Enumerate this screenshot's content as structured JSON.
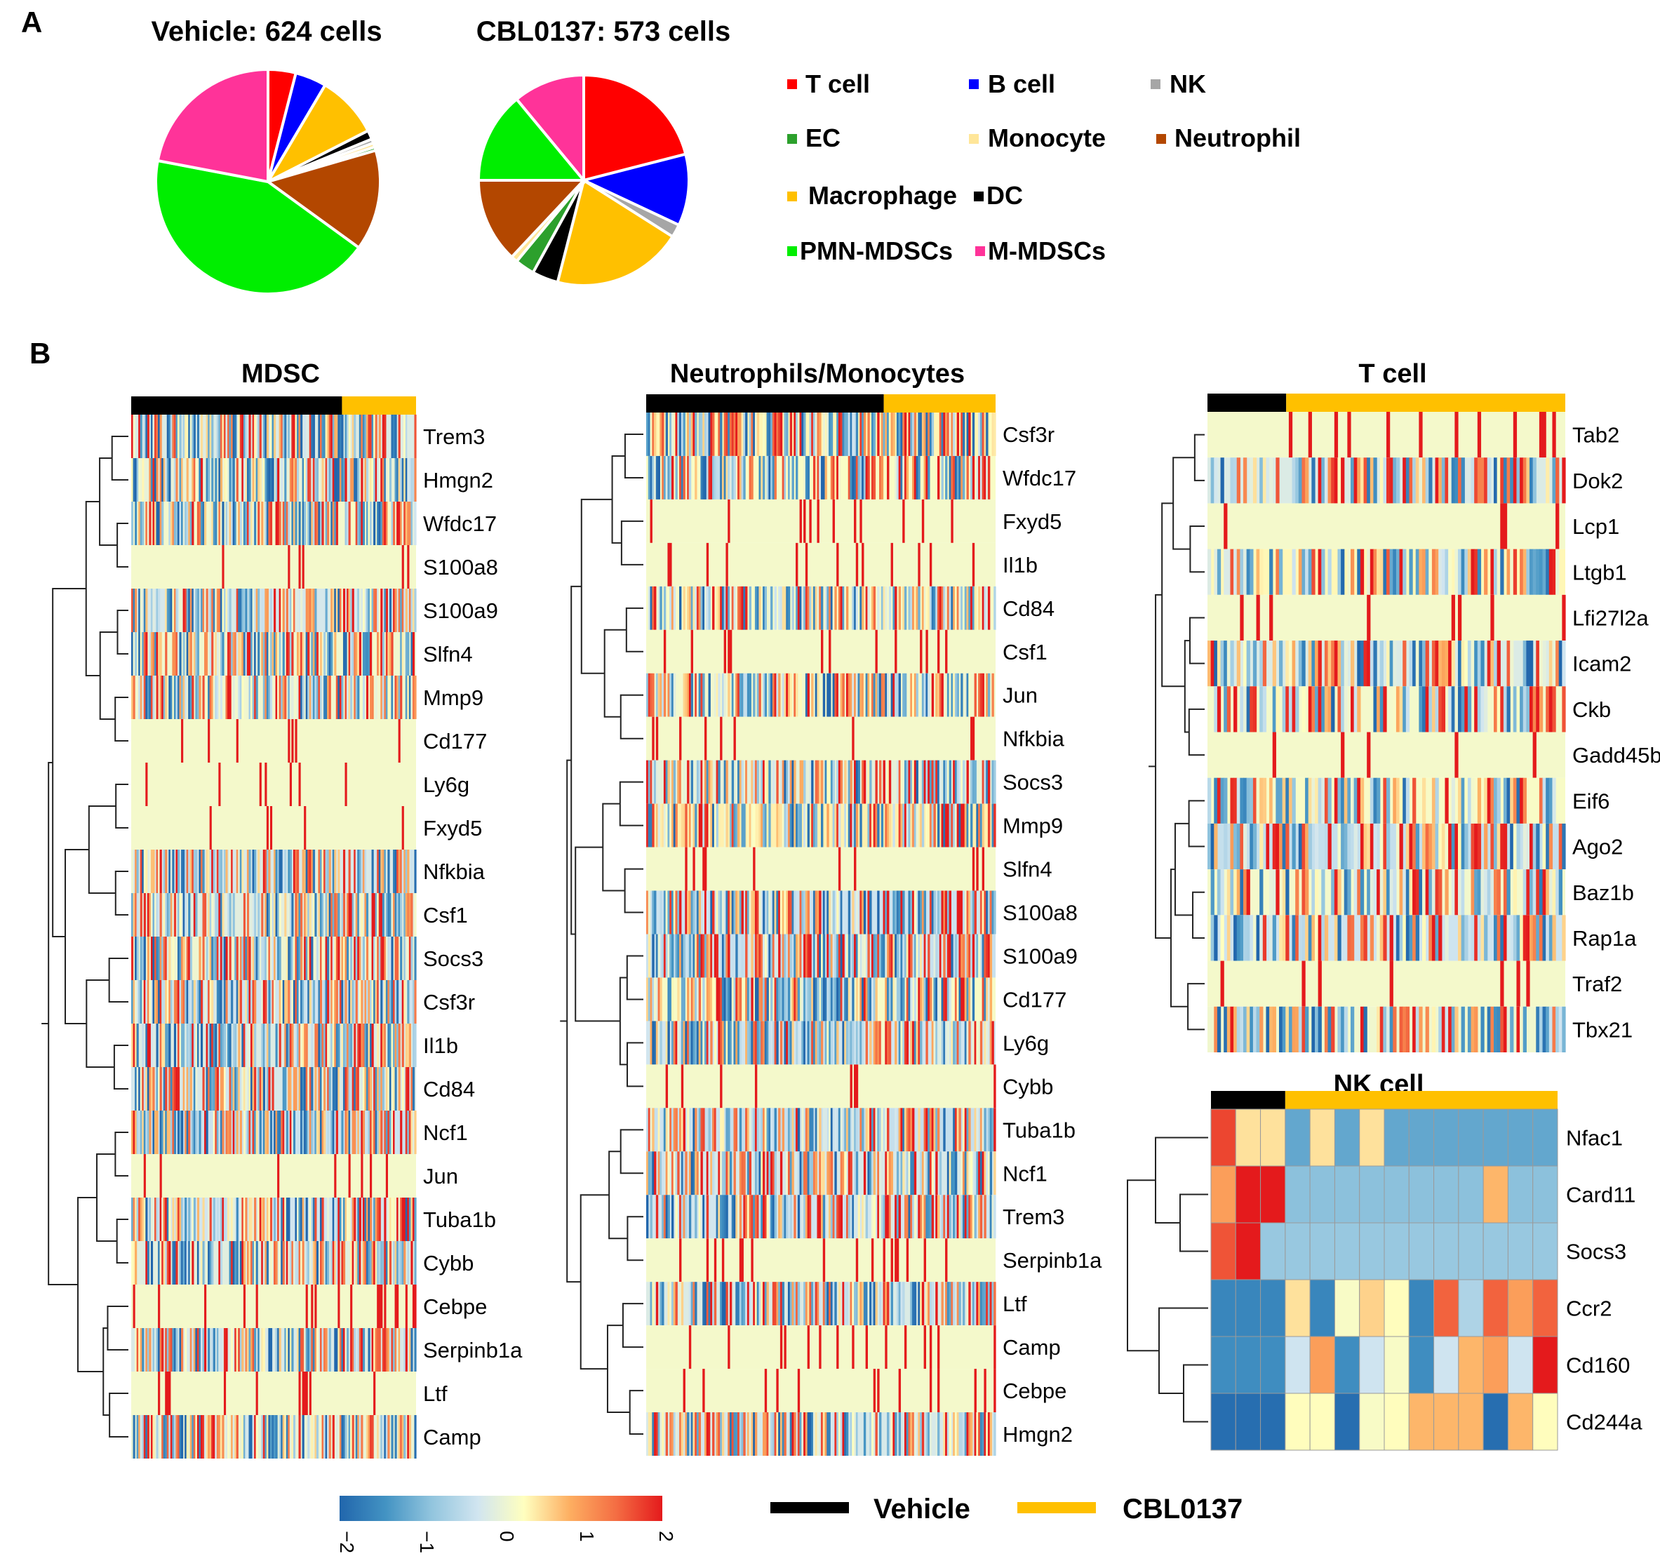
{
  "panels": {
    "a": "A",
    "b": "B"
  },
  "colors": {
    "vehicle": "#000000",
    "cbl": "#ffc000",
    "dendro": "#222222"
  },
  "chart_data": [
    {
      "type": "pie",
      "id": "vehicle",
      "title": "Vehicle: 624 cells",
      "slices": [
        {
          "label": "T cell",
          "value": 4.0
        },
        {
          "label": "B cell",
          "value": 4.5
        },
        {
          "label": "Macrophage",
          "value": 9.0
        },
        {
          "label": "DC",
          "value": 1.3
        },
        {
          "label": "NK",
          "value": 0.6
        },
        {
          "label": "Monocyte",
          "value": 0.6
        },
        {
          "label": "EC",
          "value": 0.5
        },
        {
          "label": "Neutrophil",
          "value": 14.5
        },
        {
          "label": "PMN-MDSCs",
          "value": 43.0
        },
        {
          "label": "M-MDSCs",
          "value": 22.0
        }
      ]
    },
    {
      "type": "pie",
      "id": "cbl0137",
      "title": "CBL0137: 573 cells",
      "slices": [
        {
          "label": "T cell",
          "value": 21.0
        },
        {
          "label": "B cell",
          "value": 11.0
        },
        {
          "label": "NK",
          "value": 2.0
        },
        {
          "label": "Macrophage",
          "value": 20.0
        },
        {
          "label": "DC",
          "value": 4.0
        },
        {
          "label": "EC",
          "value": 3.0
        },
        {
          "label": "Monocyte",
          "value": 1.0
        },
        {
          "label": "Neutrophil",
          "value": 13.0
        },
        {
          "label": "PMN-MDSCs",
          "value": 14.0
        },
        {
          "label": "M-MDSCs",
          "value": 11.0
        }
      ]
    },
    {
      "type": "heatmap",
      "id": "mdsc",
      "title": "MDSC",
      "vehicle_fraction": 0.74,
      "rows": [
        "Trem3",
        "Hmgn2",
        "Wfdc17",
        "S100a8",
        "S100a9",
        "Slfn4",
        "Mmp9",
        "Cd177",
        "Ly6g",
        "Fxyd5",
        "Nfkbia",
        "Csf1",
        "Socs3",
        "Csf3r",
        "Il1b",
        "Cd84",
        "Ncf1",
        "Jun",
        "Tuba1b",
        "Cybb",
        "Cebpe",
        "Serpinb1a",
        "Ltf",
        "Camp"
      ],
      "value_range": [
        -2,
        2
      ]
    },
    {
      "type": "heatmap",
      "id": "neutro",
      "title": "Neutrophils/Monocytes",
      "vehicle_fraction": 0.68,
      "rows": [
        "Csf3r",
        "Wfdc17",
        "Fxyd5",
        "Il1b",
        "Cd84",
        "Csf1",
        "Jun",
        "Nfkbia",
        "Socs3",
        "Mmp9",
        "Slfn4",
        "S100a8",
        "S100a9",
        "Cd177",
        "Ly6g",
        "Cybb",
        "Tuba1b",
        "Ncf1",
        "Trem3",
        "Serpinb1a",
        "Ltf",
        "Camp",
        "Cebpe",
        "Hmgn2"
      ],
      "value_range": [
        -2,
        2
      ]
    },
    {
      "type": "heatmap",
      "id": "tcell",
      "title": "T cell",
      "vehicle_fraction": 0.22,
      "rows": [
        "Tab2",
        "Dok2",
        "Lcp1",
        "Ltgb1",
        "Lfi27l2a",
        "Icam2",
        "Ckb",
        "Gadd45b",
        "Eif6",
        "Ago2",
        "Baz1b",
        "Rap1a",
        "Traf2",
        "Tbx21"
      ],
      "value_range": [
        -2,
        2
      ]
    },
    {
      "type": "heatmap",
      "id": "nkcell",
      "title": "NK cell",
      "n_vehicle": 3,
      "n_cbl": 11,
      "rows": [
        "Nfac1",
        "Card11",
        "Socs3",
        "Ccr2",
        "Cd160",
        "Cd244a"
      ],
      "values": [
        [
          1.7,
          0.5,
          0.5,
          -1.2,
          0.5,
          -1.2,
          0.5,
          -1.2,
          -1.2,
          -1.2,
          -1.2,
          -1.2,
          -1.2,
          -1.2
        ],
        [
          1.0,
          2.0,
          2.0,
          -0.9,
          -0.9,
          -0.9,
          -0.9,
          -0.9,
          -0.9,
          -0.9,
          -0.9,
          0.8,
          -0.9,
          -0.9
        ],
        [
          1.6,
          2.0,
          -0.8,
          -0.8,
          -0.8,
          -0.8,
          -0.8,
          -0.8,
          -0.8,
          -0.8,
          -0.8,
          -0.8,
          -0.8,
          -0.8
        ],
        [
          -1.6,
          -1.6,
          -1.6,
          0.5,
          -1.6,
          0.2,
          0.6,
          0.3,
          -1.6,
          1.5,
          -0.6,
          1.5,
          1.0,
          1.5
        ],
        [
          -1.5,
          -1.5,
          -1.5,
          -0.3,
          1.0,
          -1.5,
          -0.3,
          0.2,
          -1.5,
          -0.3,
          0.8,
          1.0,
          -0.3,
          2.0
        ],
        [
          -1.9,
          -1.9,
          -1.9,
          0.3,
          0.3,
          -1.9,
          0.2,
          0.3,
          0.8,
          0.8,
          0.8,
          -1.9,
          0.8,
          0.3
        ]
      ],
      "value_range": [
        -2,
        2
      ]
    }
  ],
  "legend": {
    "items": [
      {
        "label": "T cell",
        "color": "#ff0000"
      },
      {
        "label": "B cell",
        "color": "#0000ff"
      },
      {
        "label": "NK",
        "color": "#a6a6a6"
      },
      {
        "label": "EC",
        "color": "#2ca02c"
      },
      {
        "label": "Monocyte",
        "color": "#ffe699"
      },
      {
        "label": "Neutrophil",
        "color": "#b34700"
      },
      {
        "label": "Macrophage",
        "color": "#ffc000"
      },
      {
        "label": "DC",
        "color": "#000000"
      },
      {
        "label": "PMN-MDSCs",
        "color": "#00ee00"
      },
      {
        "label": "M-MDSCs",
        "color": "#ff3399"
      }
    ]
  },
  "colorbar": {
    "ticks": [
      "−2",
      "−1",
      "0",
      "1",
      "2"
    ],
    "stops": [
      "#2166ac",
      "#4393c3",
      "#92c5de",
      "#d1e5f0",
      "#ffffbf",
      "#fdae61",
      "#f46d43",
      "#e41a1c"
    ]
  },
  "conditions": {
    "vehicle": "Vehicle",
    "cbl": "CBL0137"
  }
}
